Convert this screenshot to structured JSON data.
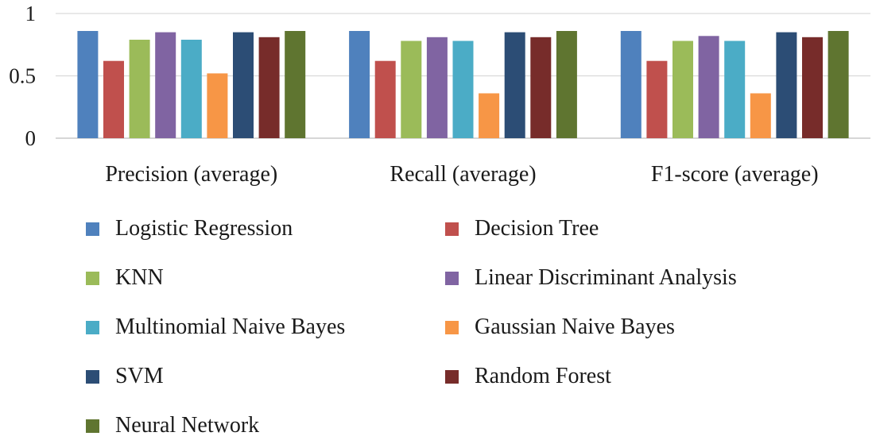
{
  "chart_data": {
    "type": "bar",
    "categories": [
      "Precision (average)",
      "Recall (average)",
      "F1-score (average)"
    ],
    "series": [
      {
        "name": "Logistic Regression",
        "color": "#4f81bd",
        "values": [
          0.86,
          0.86,
          0.86
        ]
      },
      {
        "name": "Decision Tree",
        "color": "#c0504d",
        "values": [
          0.62,
          0.62,
          0.62
        ]
      },
      {
        "name": "KNN",
        "color": "#9bbb59",
        "values": [
          0.79,
          0.78,
          0.78
        ]
      },
      {
        "name": "Linear Discriminant Analysis",
        "color": "#8064a2",
        "values": [
          0.85,
          0.81,
          0.82
        ]
      },
      {
        "name": "Multinomial Naive Bayes",
        "color": "#4bacc6",
        "values": [
          0.79,
          0.78,
          0.78
        ]
      },
      {
        "name": "Gaussian Naive Bayes",
        "color": "#f79646",
        "values": [
          0.52,
          0.36,
          0.36
        ]
      },
      {
        "name": "SVM",
        "color": "#2c4d75",
        "values": [
          0.85,
          0.85,
          0.85
        ]
      },
      {
        "name": "Random Forest",
        "color": "#772c2a",
        "values": [
          0.81,
          0.81,
          0.81
        ]
      },
      {
        "name": "Neural Network",
        "color": "#5f7530",
        "values": [
          0.86,
          0.86,
          0.86
        ]
      }
    ],
    "yticks": [
      "0",
      "0.5",
      "1"
    ],
    "ylim": [
      0,
      1
    ],
    "grid": true,
    "legend_position": "bottom",
    "title": "",
    "xlabel": "",
    "ylabel": ""
  }
}
